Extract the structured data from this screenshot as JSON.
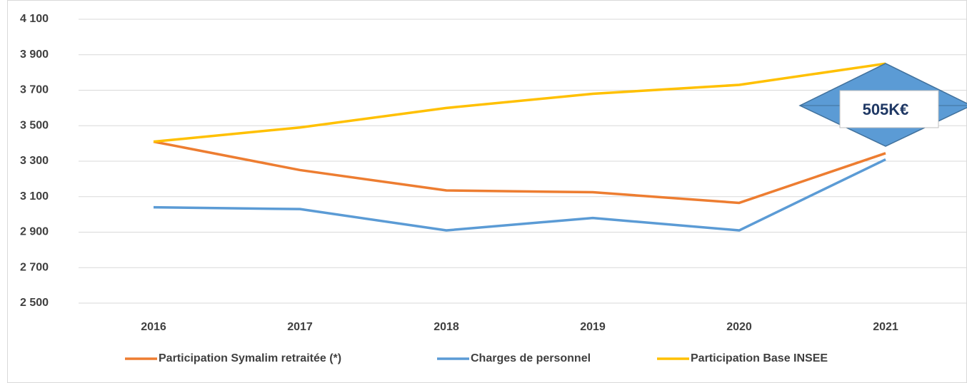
{
  "chart_data": {
    "type": "line",
    "categories": [
      "2016",
      "2017",
      "2018",
      "2019",
      "2020",
      "2021"
    ],
    "series": [
      {
        "name": "Participation Symalim retraitée (*)",
        "color": "#ed7d31",
        "values": [
          3410,
          3250,
          3135,
          3125,
          3065,
          3345
        ]
      },
      {
        "name": "Charges de personnel",
        "color": "#5b9bd5",
        "values": [
          3040,
          3030,
          2910,
          2980,
          2910,
          3310
        ]
      },
      {
        "name": "Participation Base INSEE",
        "color": "#ffc000",
        "values": [
          3410,
          3490,
          3600,
          3680,
          3730,
          3850
        ]
      }
    ],
    "ylim": [
      2500,
      4100
    ],
    "yticks": [
      {
        "value": 2500,
        "label": "2 500"
      },
      {
        "value": 2700,
        "label": "2 700"
      },
      {
        "value": 2900,
        "label": "2 900"
      },
      {
        "value": 3100,
        "label": "3 100"
      },
      {
        "value": 3300,
        "label": "3 300"
      },
      {
        "value": 3500,
        "label": "3 500"
      },
      {
        "value": 3700,
        "label": "3 700"
      },
      {
        "value": 3900,
        "label": "3 900"
      },
      {
        "value": 4100,
        "label": "4 100"
      }
    ],
    "grid": true,
    "legend": "bottom",
    "annotation": "505K€"
  }
}
